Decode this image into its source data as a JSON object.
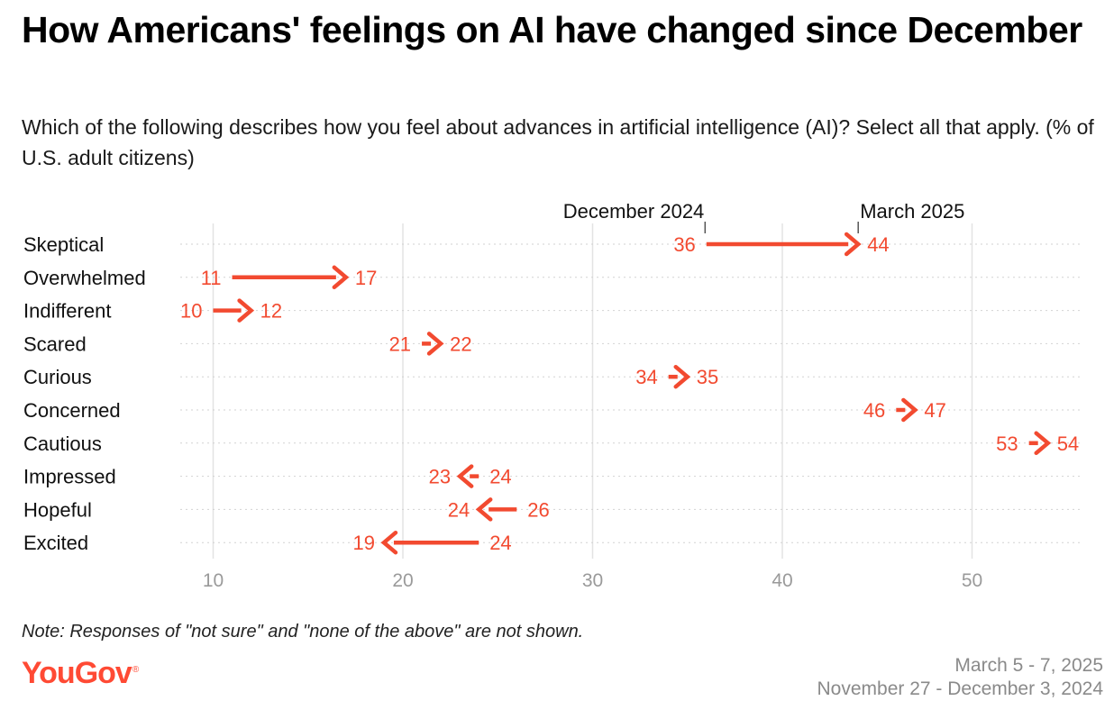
{
  "header": {
    "title": "How Americans' feelings on AI have changed since December",
    "subtitle": "Which of the following describes how you feel about advances in artificial intelligence (AI)? Select all that apply. (% of U.S. adult citizens)"
  },
  "footer": {
    "note": "Note: Responses of \"not sure\" and \"none of the above\" are not shown.",
    "logo": "YouGov",
    "date_current": "March 5 - 7, 2025",
    "date_previous": "November 27 - December 3, 2024"
  },
  "colors": {
    "accent": "#f24a30",
    "grid": "#e3e3e3",
    "tick_text": "#9a9a9a"
  },
  "chart_data": {
    "type": "arrow",
    "categories": [
      "Skeptical",
      "Overwhelmed",
      "Indifferent",
      "Scared",
      "Curious",
      "Concerned",
      "Cautious",
      "Impressed",
      "Hopeful",
      "Excited"
    ],
    "series": [
      {
        "name": "December 2024",
        "values": [
          36,
          11,
          10,
          21,
          34,
          46,
          53,
          24,
          26,
          24
        ]
      },
      {
        "name": "March 2025",
        "values": [
          44,
          17,
          12,
          22,
          35,
          47,
          54,
          23,
          24,
          19
        ]
      }
    ],
    "xticks": [
      10,
      20,
      30,
      40,
      50
    ],
    "xlim": [
      8,
      56
    ],
    "annotations": [
      {
        "text": "December 2024",
        "x": 36
      },
      {
        "text": "March 2025",
        "x": 44
      }
    ]
  }
}
